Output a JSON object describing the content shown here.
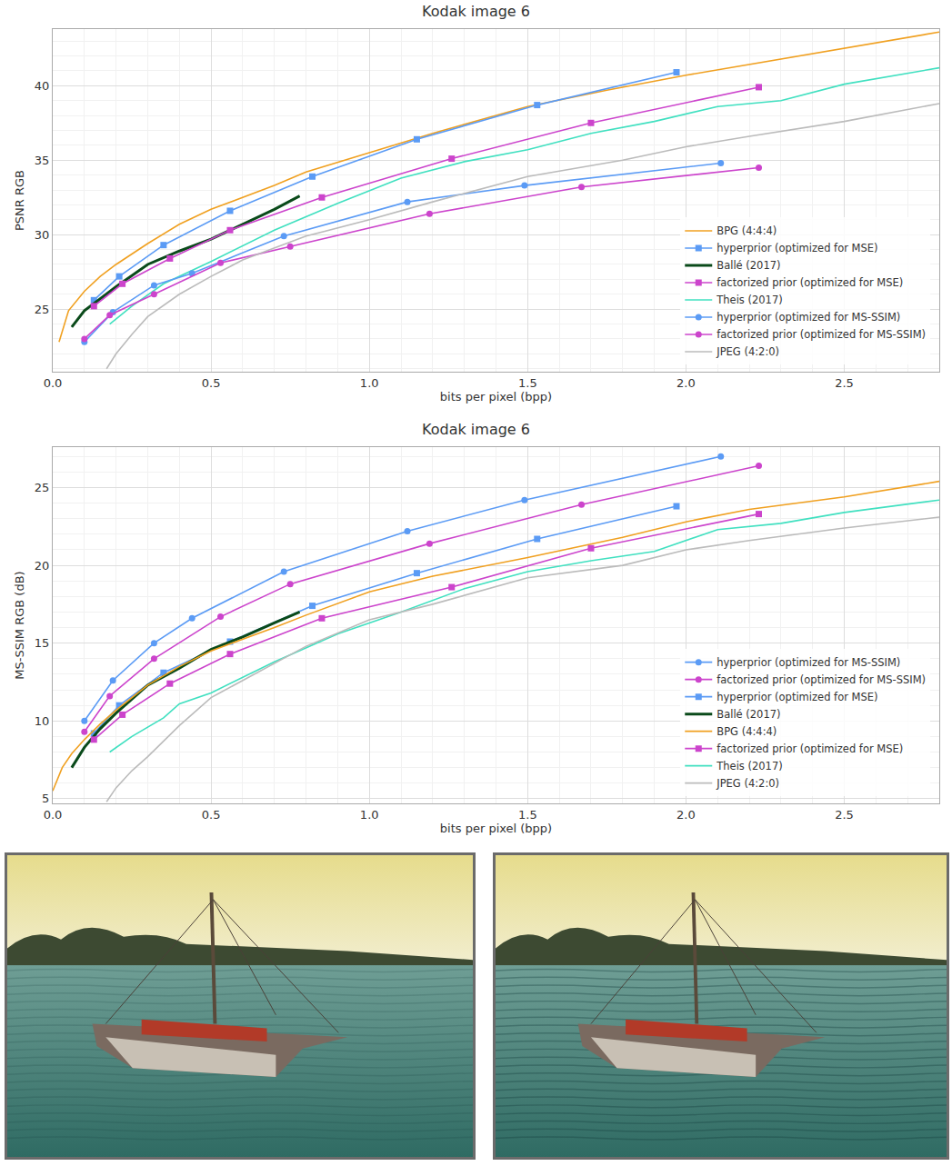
{
  "chart_data": [
    {
      "type": "line",
      "title": "Kodak image 6",
      "x_label": "bits per pixel (bpp)",
      "y_label": "PSNR RGB",
      "xlim": [
        0,
        2.8
      ],
      "ylim": [
        20.8,
        43.8
      ],
      "xticks": [
        {
          "value": 0,
          "label": "0.0"
        },
        0.5,
        {
          "value": 1,
          "label": "1.0"
        },
        1.5,
        {
          "value": 2,
          "label": "2.0"
        },
        2.5
      ],
      "yticks": [
        25,
        30,
        35,
        40
      ],
      "grid": true,
      "legend": "lower right",
      "series": [
        {
          "name": "BPG (4:4:4)",
          "color": "#f0a020",
          "line_style": "solid",
          "x": [
            0.02,
            0.05,
            0.1,
            0.15,
            0.2,
            0.3,
            0.4,
            0.5,
            0.7,
            0.8,
            1.0,
            1.2,
            1.5,
            1.75,
            2.0,
            2.25,
            2.5,
            2.8
          ],
          "values": [
            22.8,
            24.9,
            26.2,
            27.2,
            28.0,
            29.4,
            30.7,
            31.7,
            33.3,
            34.2,
            35.5,
            36.8,
            38.6,
            39.7,
            40.7,
            41.6,
            42.5,
            43.6
          ]
        },
        {
          "name": "hyperprior (optimized for MSE)",
          "color": "#5b9bf5",
          "marker": "square",
          "line_style": "solid",
          "x": [
            0.13,
            0.21,
            0.35,
            0.56,
            0.82,
            1.15,
            1.53,
            1.97
          ],
          "values": [
            25.6,
            27.2,
            29.3,
            31.6,
            33.9,
            36.4,
            38.7,
            40.9
          ]
        },
        {
          "name": "Ballé (2017)",
          "color": "#0a4a1a",
          "line_style": "bold",
          "x": [
            0.06,
            0.1,
            0.15,
            0.2,
            0.3,
            0.4,
            0.5,
            0.6,
            0.7,
            0.78
          ],
          "values": [
            23.8,
            24.9,
            25.7,
            26.5,
            28.0,
            28.9,
            29.7,
            30.7,
            31.7,
            32.6
          ]
        },
        {
          "name": "factorized prior (optimized for MSE)",
          "color": "#cc44cc",
          "marker": "square",
          "line_style": "solid",
          "x": [
            0.13,
            0.22,
            0.37,
            0.56,
            0.85,
            1.26,
            1.7,
            2.23
          ],
          "values": [
            25.2,
            26.7,
            28.4,
            30.3,
            32.5,
            35.1,
            37.5,
            39.9
          ]
        },
        {
          "name": "Theis (2017)",
          "color": "#40e0c0",
          "line_style": "solid",
          "x": [
            0.18,
            0.25,
            0.35,
            0.5,
            0.7,
            0.9,
            1.1,
            1.3,
            1.5,
            1.7,
            1.9,
            2.1,
            2.3,
            2.5,
            2.8
          ],
          "values": [
            24.0,
            25.2,
            26.7,
            28.2,
            30.3,
            32.1,
            33.8,
            34.9,
            35.7,
            36.8,
            37.6,
            38.6,
            39.0,
            40.1,
            41.2
          ]
        },
        {
          "name": "hyperprior (optimized for MS-SSIM)",
          "color": "#5b9bf5",
          "marker": "circle",
          "line_style": "solid",
          "x": [
            0.1,
            0.19,
            0.32,
            0.44,
            0.73,
            1.12,
            1.49,
            2.11
          ],
          "values": [
            22.8,
            24.8,
            26.6,
            27.4,
            29.9,
            32.2,
            33.3,
            34.8
          ]
        },
        {
          "name": "factorized prior (optimized for MS-SSIM)",
          "color": "#cc44cc",
          "marker": "circle",
          "line_style": "solid",
          "x": [
            0.1,
            0.18,
            0.32,
            0.53,
            0.75,
            1.19,
            1.67,
            2.23
          ],
          "values": [
            23.0,
            24.6,
            26.0,
            28.1,
            29.2,
            31.4,
            33.2,
            34.5
          ]
        },
        {
          "name": "JPEG (4:2:0)",
          "color": "#bbbbbb",
          "line_style": "solid",
          "x": [
            0.17,
            0.2,
            0.25,
            0.3,
            0.4,
            0.5,
            0.6,
            0.8,
            1.0,
            1.2,
            1.5,
            1.8,
            2.0,
            2.2,
            2.5,
            2.8
          ],
          "values": [
            21.0,
            22.0,
            23.3,
            24.5,
            26.0,
            27.2,
            28.3,
            29.9,
            31.0,
            32.2,
            33.9,
            35.0,
            35.9,
            36.6,
            37.6,
            38.8
          ]
        }
      ]
    },
    {
      "type": "line",
      "title": "Kodak image 6",
      "x_label": "bits per pixel (bpp)",
      "y_label": "MS-SSIM RGB (dB)",
      "xlim": [
        0,
        2.8
      ],
      "ylim": [
        4.7,
        27.6
      ],
      "xticks": [
        {
          "value": 0,
          "label": "0.0"
        },
        0.5,
        {
          "value": 1,
          "label": "1.0"
        },
        1.5,
        {
          "value": 2,
          "label": "2.0"
        },
        2.5
      ],
      "yticks": [
        5,
        10,
        15,
        20,
        25
      ],
      "grid": true,
      "legend": "lower right",
      "series": [
        {
          "name": "hyperprior (optimized for MS-SSIM)",
          "color": "#5b9bf5",
          "marker": "circle",
          "line_style": "solid",
          "x": [
            0.1,
            0.19,
            0.32,
            0.44,
            0.73,
            1.12,
            1.49,
            2.11
          ],
          "values": [
            10.0,
            12.6,
            15.0,
            16.6,
            19.6,
            22.2,
            24.2,
            27.0
          ]
        },
        {
          "name": "factorized prior (optimized for MS-SSIM)",
          "color": "#cc44cc",
          "marker": "circle",
          "line_style": "solid",
          "x": [
            0.1,
            0.18,
            0.32,
            0.53,
            0.75,
            1.19,
            1.67,
            2.23
          ],
          "values": [
            9.3,
            11.6,
            14.0,
            16.7,
            18.8,
            21.4,
            23.9,
            26.4
          ]
        },
        {
          "name": "hyperprior (optimized for MSE)",
          "color": "#5b9bf5",
          "marker": "square",
          "line_style": "solid",
          "x": [
            0.13,
            0.21,
            0.35,
            0.56,
            0.82,
            1.15,
            1.53,
            1.97
          ],
          "values": [
            9.2,
            11.0,
            13.1,
            15.1,
            17.4,
            19.5,
            21.7,
            23.8
          ]
        },
        {
          "name": "Ballé (2017)",
          "color": "#0a4a1a",
          "line_style": "bold",
          "x": [
            0.06,
            0.1,
            0.15,
            0.2,
            0.3,
            0.4,
            0.5,
            0.6,
            0.7,
            0.78
          ],
          "values": [
            7.0,
            8.3,
            9.5,
            10.5,
            12.3,
            13.4,
            14.6,
            15.4,
            16.3,
            17.0
          ]
        },
        {
          "name": "BPG (4:4:4)",
          "color": "#f0a020",
          "line_style": "solid",
          "x": [
            0.0,
            0.03,
            0.06,
            0.1,
            0.15,
            0.2,
            0.3,
            0.4,
            0.5,
            0.7,
            0.8,
            1.0,
            1.2,
            1.5,
            1.8,
            2.0,
            2.2,
            2.5,
            2.8
          ],
          "values": [
            5.5,
            7.0,
            7.9,
            8.8,
            9.8,
            10.7,
            12.3,
            13.5,
            14.5,
            16.0,
            16.8,
            18.3,
            19.3,
            20.5,
            21.8,
            22.8,
            23.6,
            24.4,
            25.4
          ]
        },
        {
          "name": "factorized prior (optimized for MSE)",
          "color": "#cc44cc",
          "marker": "square",
          "line_style": "solid",
          "x": [
            0.13,
            0.22,
            0.37,
            0.56,
            0.85,
            1.26,
            1.7,
            2.23
          ],
          "values": [
            8.8,
            10.4,
            12.4,
            14.3,
            16.6,
            18.6,
            21.1,
            23.3
          ]
        },
        {
          "name": "Theis (2017)",
          "color": "#40e0c0",
          "line_style": "solid",
          "x": [
            0.18,
            0.25,
            0.35,
            0.4,
            0.5,
            0.7,
            0.9,
            1.1,
            1.3,
            1.5,
            1.7,
            1.9,
            2.1,
            2.3,
            2.5,
            2.8
          ],
          "values": [
            8.0,
            9.0,
            10.2,
            11.1,
            11.8,
            13.8,
            15.6,
            17.0,
            18.5,
            19.6,
            20.3,
            20.9,
            22.3,
            22.7,
            23.4,
            24.2
          ]
        },
        {
          "name": "JPEG (4:2:0)",
          "color": "#bbbbbb",
          "line_style": "solid",
          "x": [
            0.17,
            0.2,
            0.25,
            0.3,
            0.4,
            0.5,
            0.6,
            0.8,
            1.0,
            1.2,
            1.5,
            1.8,
            2.0,
            2.2,
            2.5,
            2.8
          ],
          "values": [
            4.8,
            5.7,
            6.8,
            7.7,
            9.7,
            11.5,
            12.6,
            14.8,
            16.5,
            17.5,
            19.2,
            20.0,
            21.0,
            21.6,
            22.4,
            23.1
          ]
        }
      ]
    }
  ]
}
